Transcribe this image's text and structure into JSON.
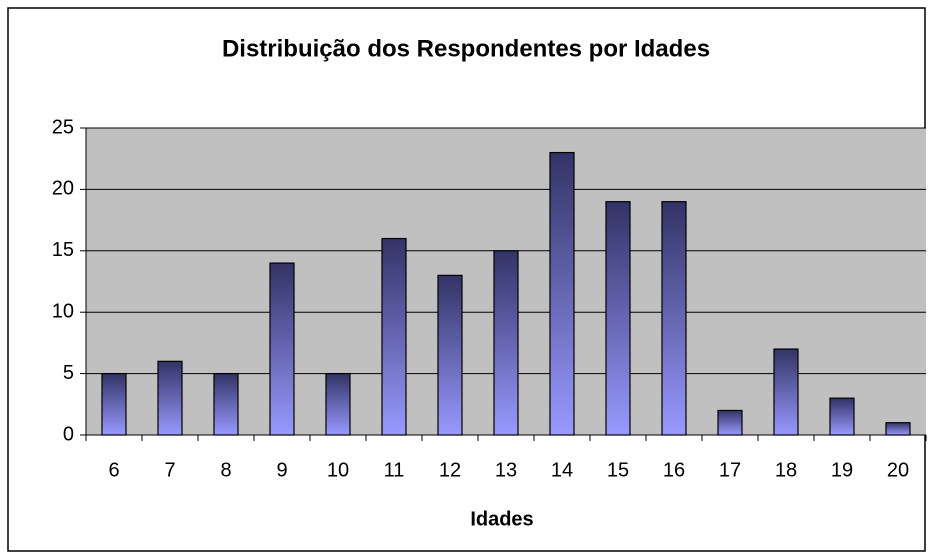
{
  "chart_data": {
    "type": "bar",
    "title": "Distribuição dos Respondentes por Idades",
    "xlabel": "Idades",
    "categories": [
      "6",
      "7",
      "8",
      "9",
      "10",
      "11",
      "12",
      "13",
      "14",
      "15",
      "16",
      "17",
      "18",
      "19",
      "20"
    ],
    "values": [
      5,
      6,
      5,
      14,
      5,
      16,
      13,
      15,
      23,
      19,
      19,
      2,
      7,
      3,
      1
    ],
    "color": "#9999ff",
    "ylim": [
      0,
      25
    ],
    "yticks": [
      0,
      5,
      10,
      15,
      20,
      25
    ],
    "grid": true
  }
}
